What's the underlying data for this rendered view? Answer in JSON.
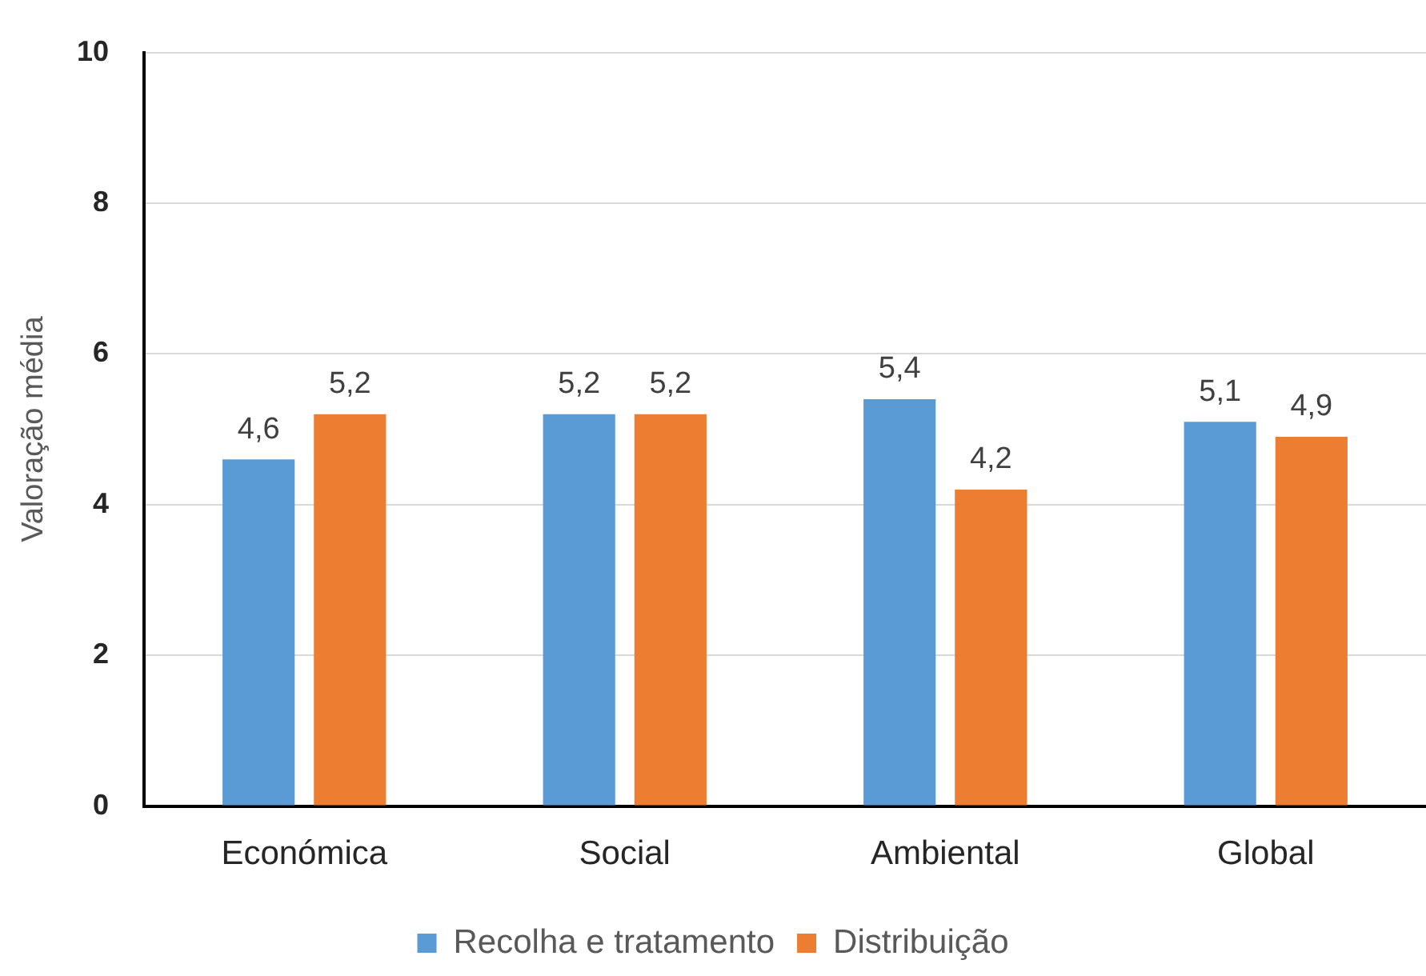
{
  "chart_data": {
    "type": "bar",
    "ylabel": "Valoração média",
    "categories": [
      "Económica",
      "Social",
      "Ambiental",
      "Global"
    ],
    "series": [
      {
        "name": "Recolha e tratamento",
        "color": "#5b9bd5",
        "values": [
          4.6,
          5.2,
          5.4,
          5.1
        ],
        "value_labels": [
          "4,6",
          "5,2",
          "5,4",
          "5,1"
        ]
      },
      {
        "name": "Distribuição",
        "color": "#ed7d31",
        "values": [
          5.2,
          5.2,
          4.2,
          4.9
        ],
        "value_labels": [
          "5,2",
          "5,2",
          "4,2",
          "4,9"
        ]
      }
    ],
    "ylim": [
      0,
      10
    ],
    "yticks": [
      0,
      2,
      4,
      6,
      8,
      10
    ],
    "grid": "y",
    "legend": "bottom"
  }
}
